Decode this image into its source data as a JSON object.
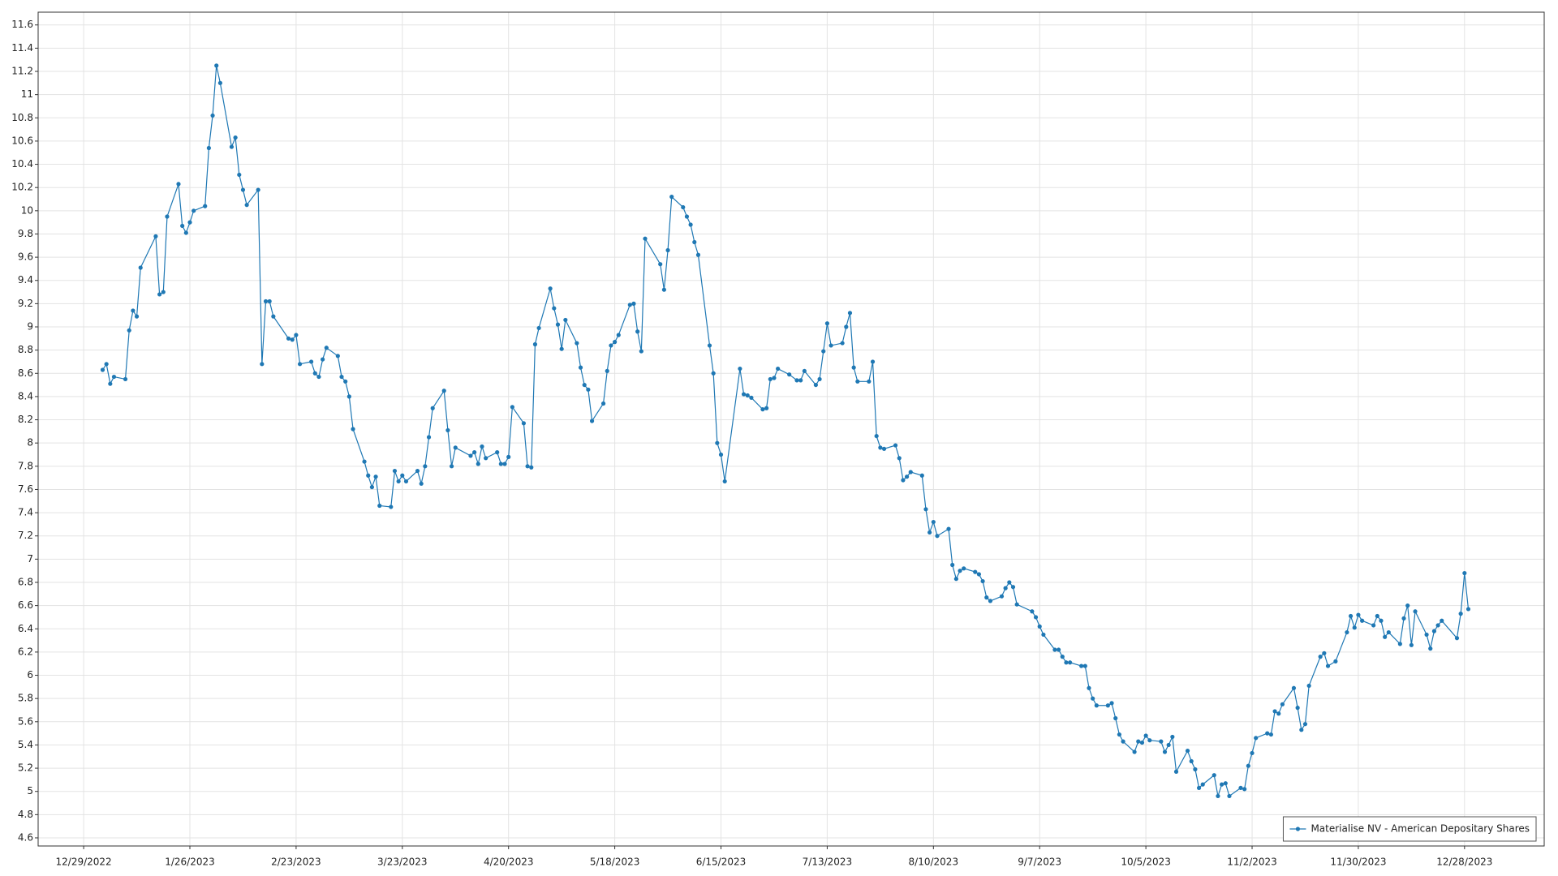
{
  "chart_data": {
    "type": "line",
    "x": [
      "2023-01-03",
      "2023-01-04",
      "2023-01-05",
      "2023-01-06",
      "2023-01-09",
      "2023-01-10",
      "2023-01-11",
      "2023-01-12",
      "2023-01-13",
      "2023-01-17",
      "2023-01-18",
      "2023-01-19",
      "2023-01-20",
      "2023-01-23",
      "2023-01-24",
      "2023-01-25",
      "2023-01-26",
      "2023-01-27",
      "2023-01-30",
      "2023-01-31",
      "2023-02-01",
      "2023-02-02",
      "2023-02-03",
      "2023-02-06",
      "2023-02-07",
      "2023-02-08",
      "2023-02-09",
      "2023-02-10",
      "2023-02-13",
      "2023-02-14",
      "2023-02-15",
      "2023-02-16",
      "2023-02-17",
      "2023-02-21",
      "2023-02-22",
      "2023-02-23",
      "2023-02-24",
      "2023-02-27",
      "2023-02-28",
      "2023-03-01",
      "2023-03-02",
      "2023-03-03",
      "2023-03-06",
      "2023-03-07",
      "2023-03-08",
      "2023-03-09",
      "2023-03-10",
      "2023-03-13",
      "2023-03-14",
      "2023-03-15",
      "2023-03-16",
      "2023-03-17",
      "2023-03-20",
      "2023-03-21",
      "2023-03-22",
      "2023-03-23",
      "2023-03-24",
      "2023-03-27",
      "2023-03-28",
      "2023-03-29",
      "2023-03-30",
      "2023-03-31",
      "2023-04-03",
      "2023-04-04",
      "2023-04-05",
      "2023-04-06",
      "2023-04-10",
      "2023-04-11",
      "2023-04-12",
      "2023-04-13",
      "2023-04-14",
      "2023-04-17",
      "2023-04-18",
      "2023-04-19",
      "2023-04-20",
      "2023-04-21",
      "2023-04-24",
      "2023-04-25",
      "2023-04-26",
      "2023-04-27",
      "2023-04-28",
      "2023-05-01",
      "2023-05-02",
      "2023-05-03",
      "2023-05-04",
      "2023-05-05",
      "2023-05-08",
      "2023-05-09",
      "2023-05-10",
      "2023-05-11",
      "2023-05-12",
      "2023-05-15",
      "2023-05-16",
      "2023-05-17",
      "2023-05-18",
      "2023-05-19",
      "2023-05-22",
      "2023-05-23",
      "2023-05-24",
      "2023-05-25",
      "2023-05-26",
      "2023-05-30",
      "2023-05-31",
      "2023-06-01",
      "2023-06-02",
      "2023-06-05",
      "2023-06-06",
      "2023-06-07",
      "2023-06-08",
      "2023-06-09",
      "2023-06-12",
      "2023-06-13",
      "2023-06-14",
      "2023-06-15",
      "2023-06-16",
      "2023-06-20",
      "2023-06-21",
      "2023-06-22",
      "2023-06-23",
      "2023-06-26",
      "2023-06-27",
      "2023-06-28",
      "2023-06-29",
      "2023-06-30",
      "2023-07-03",
      "2023-07-05",
      "2023-07-06",
      "2023-07-07",
      "2023-07-10",
      "2023-07-11",
      "2023-07-12",
      "2023-07-13",
      "2023-07-14",
      "2023-07-17",
      "2023-07-18",
      "2023-07-19",
      "2023-07-20",
      "2023-07-21",
      "2023-07-24",
      "2023-07-25",
      "2023-07-26",
      "2023-07-27",
      "2023-07-28",
      "2023-07-31",
      "2023-08-01",
      "2023-08-02",
      "2023-08-03",
      "2023-08-04",
      "2023-08-07",
      "2023-08-08",
      "2023-08-09",
      "2023-08-10",
      "2023-08-11",
      "2023-08-14",
      "2023-08-15",
      "2023-08-16",
      "2023-08-17",
      "2023-08-18",
      "2023-08-21",
      "2023-08-22",
      "2023-08-23",
      "2023-08-24",
      "2023-08-25",
      "2023-08-28",
      "2023-08-29",
      "2023-08-30",
      "2023-08-31",
      "2023-09-01",
      "2023-09-05",
      "2023-09-06",
      "2023-09-07",
      "2023-09-08",
      "2023-09-11",
      "2023-09-12",
      "2023-09-13",
      "2023-09-14",
      "2023-09-15",
      "2023-09-18",
      "2023-09-19",
      "2023-09-20",
      "2023-09-21",
      "2023-09-22",
      "2023-09-25",
      "2023-09-26",
      "2023-09-27",
      "2023-09-28",
      "2023-09-29",
      "2023-10-02",
      "2023-10-03",
      "2023-10-04",
      "2023-10-05",
      "2023-10-06",
      "2023-10-09",
      "2023-10-10",
      "2023-10-11",
      "2023-10-12",
      "2023-10-13",
      "2023-10-16",
      "2023-10-17",
      "2023-10-18",
      "2023-10-19",
      "2023-10-20",
      "2023-10-23",
      "2023-10-24",
      "2023-10-25",
      "2023-10-26",
      "2023-10-27",
      "2023-10-30",
      "2023-10-31",
      "2023-11-01",
      "2023-11-02",
      "2023-11-03",
      "2023-11-06",
      "2023-11-07",
      "2023-11-08",
      "2023-11-09",
      "2023-11-10",
      "2023-11-13",
      "2023-11-14",
      "2023-11-15",
      "2023-11-16",
      "2023-11-17",
      "2023-11-20",
      "2023-11-21",
      "2023-11-22",
      "2023-11-24",
      "2023-11-27",
      "2023-11-28",
      "2023-11-29",
      "2023-11-30",
      "2023-12-01",
      "2023-12-04",
      "2023-12-05",
      "2023-12-06",
      "2023-12-07",
      "2023-12-08",
      "2023-12-11",
      "2023-12-12",
      "2023-12-13",
      "2023-12-14",
      "2023-12-15",
      "2023-12-18",
      "2023-12-19",
      "2023-12-20",
      "2023-12-21",
      "2023-12-22",
      "2023-12-26",
      "2023-12-27",
      "2023-12-28",
      "2023-12-29"
    ],
    "series": [
      {
        "name": "Materialise NV - American Depositary Shares",
        "color": "#1f78b4",
        "values": [
          8.63,
          8.68,
          8.51,
          8.57,
          8.55,
          8.97,
          9.14,
          9.09,
          9.51,
          9.78,
          9.28,
          9.3,
          9.95,
          10.23,
          9.87,
          9.81,
          9.9,
          10.0,
          10.04,
          10.54,
          10.82,
          11.25,
          11.1,
          10.55,
          10.63,
          10.31,
          10.18,
          10.05,
          10.18,
          8.68,
          9.22,
          9.22,
          9.09,
          8.9,
          8.89,
          8.93,
          8.68,
          8.7,
          8.6,
          8.57,
          8.72,
          8.82,
          8.75,
          8.57,
          8.53,
          8.4,
          8.12,
          7.84,
          7.72,
          7.62,
          7.71,
          7.46,
          7.45,
          7.76,
          7.67,
          7.72,
          7.67,
          7.76,
          7.65,
          7.8,
          8.05,
          8.3,
          8.45,
          8.11,
          7.8,
          7.96,
          7.89,
          7.92,
          7.82,
          7.97,
          7.87,
          7.92,
          7.82,
          7.82,
          7.88,
          8.31,
          8.17,
          7.8,
          7.79,
          8.85,
          8.99,
          9.33,
          9.16,
          9.02,
          8.81,
          9.06,
          8.86,
          8.65,
          8.5,
          8.46,
          8.19,
          8.34,
          8.62,
          8.84,
          8.87,
          8.93,
          9.19,
          9.2,
          8.96,
          8.79,
          9.76,
          9.54,
          9.32,
          9.66,
          10.12,
          10.03,
          9.95,
          9.88,
          9.73,
          9.62,
          8.84,
          8.6,
          8.0,
          7.9,
          7.67,
          8.64,
          8.42,
          8.41,
          8.39,
          8.29,
          8.3,
          8.55,
          8.56,
          8.64,
          8.59,
          8.54,
          8.54,
          8.62,
          8.5,
          8.55,
          8.79,
          9.03,
          8.84,
          8.86,
          9.0,
          9.12,
          8.65,
          8.53,
          8.53,
          8.7,
          8.06,
          7.96,
          7.95,
          7.98,
          7.87,
          7.68,
          7.71,
          7.75,
          7.72,
          7.43,
          7.23,
          7.32,
          7.2,
          7.26,
          6.95,
          6.83,
          6.9,
          6.92,
          6.89,
          6.87,
          6.81,
          6.67,
          6.64,
          6.68,
          6.75,
          6.8,
          6.76,
          6.61,
          6.55,
          6.5,
          6.42,
          6.35,
          6.22,
          6.22,
          6.16,
          6.11,
          6.11,
          6.08,
          6.08,
          5.89,
          5.8,
          5.74,
          5.74,
          5.76,
          5.63,
          5.49,
          5.43,
          5.34,
          5.43,
          5.42,
          5.48,
          5.44,
          5.43,
          5.34,
          5.4,
          5.47,
          5.17,
          5.35,
          5.26,
          5.19,
          5.03,
          5.06,
          5.14,
          4.96,
          5.06,
          5.07,
          4.96,
          5.03,
          5.02,
          5.22,
          5.33,
          5.46,
          5.5,
          5.49,
          5.69,
          5.67,
          5.75,
          5.89,
          5.72,
          5.53,
          5.58,
          5.91,
          6.16,
          6.19,
          6.08,
          6.12,
          6.37,
          6.51,
          6.41,
          6.52,
          6.47,
          6.43,
          6.51,
          6.47,
          6.33,
          6.37,
          6.27,
          6.49,
          6.6,
          6.26,
          6.55,
          6.35,
          6.23,
          6.38,
          6.43,
          6.47,
          6.32,
          6.53,
          6.88,
          6.57
        ]
      }
    ],
    "xlim": [
      "2022-12-17",
      "2024-01-18"
    ],
    "xticks": [
      {
        "value": "2022-12-29",
        "label": "12/29/2022"
      },
      {
        "value": "2023-01-26",
        "label": "1/26/2023"
      },
      {
        "value": "2023-02-23",
        "label": "2/23/2023"
      },
      {
        "value": "2023-03-23",
        "label": "3/23/2023"
      },
      {
        "value": "2023-04-20",
        "label": "4/20/2023"
      },
      {
        "value": "2023-05-18",
        "label": "5/18/2023"
      },
      {
        "value": "2023-06-15",
        "label": "6/15/2023"
      },
      {
        "value": "2023-07-13",
        "label": "7/13/2023"
      },
      {
        "value": "2023-08-10",
        "label": "8/10/2023"
      },
      {
        "value": "2023-09-07",
        "label": "9/7/2023"
      },
      {
        "value": "2023-10-05",
        "label": "10/5/2023"
      },
      {
        "value": "2023-11-02",
        "label": "11/2/2023"
      },
      {
        "value": "2023-11-30",
        "label": "11/30/2023"
      },
      {
        "value": "2023-12-28",
        "label": "12/28/2023"
      }
    ],
    "ylim": [
      4.53,
      11.71
    ],
    "yticks": [
      4.6,
      4.8,
      5,
      5.2,
      5.4,
      5.6,
      5.8,
      6,
      6.2,
      6.4,
      6.6,
      6.8,
      7,
      7.2,
      7.4,
      7.6,
      7.8,
      8,
      8.2,
      8.4,
      8.6,
      8.8,
      9,
      9.2,
      9.4,
      9.6,
      9.8,
      10,
      10.2,
      10.4,
      10.6,
      10.8,
      11,
      11.2,
      11.4,
      11.6
    ],
    "grid": true,
    "legend": "lower right",
    "markers": true
  }
}
